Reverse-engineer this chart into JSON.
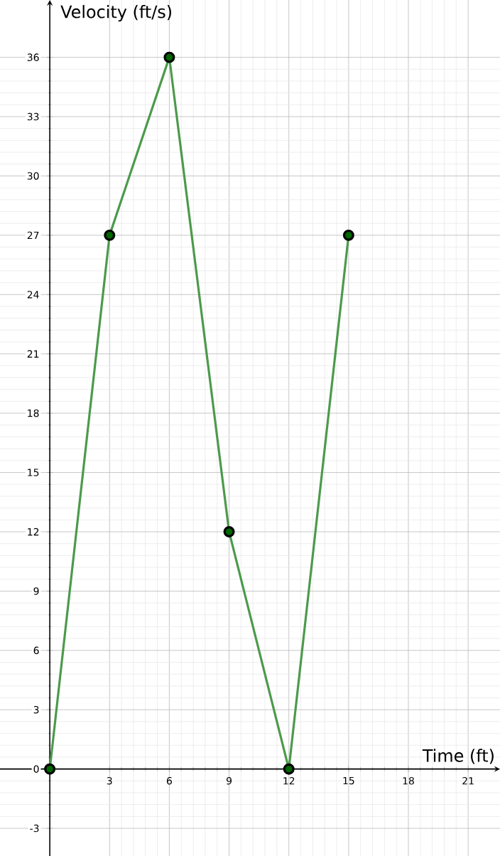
{
  "chart_data": {
    "type": "line",
    "xlabel": "Time (ft)",
    "ylabel": "Velocity (ft/s)",
    "x": [
      0,
      3,
      6,
      9,
      12,
      15
    ],
    "series": [
      {
        "color": "#4c9a4c",
        "values": [
          0,
          27,
          36,
          12,
          0,
          27
        ]
      }
    ],
    "marker": "circle",
    "line_style": "solid",
    "grid": true,
    "xlim": [
      -2.5,
      22.6
    ],
    "ylim": [
      -4.4,
      38.9
    ],
    "xticks": [
      3,
      6,
      9,
      12,
      15,
      18,
      21
    ],
    "yticks": [
      -3,
      0,
      3,
      6,
      9,
      12,
      15,
      18,
      21,
      24,
      27,
      30,
      33,
      36
    ]
  }
}
